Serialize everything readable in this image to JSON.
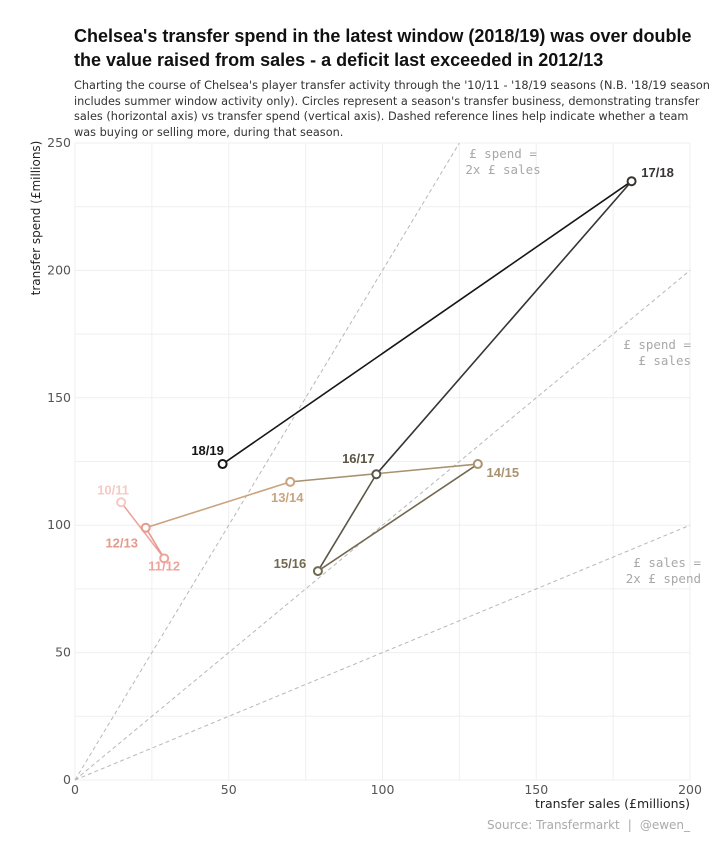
{
  "chart_data": {
    "type": "scatter",
    "title": "Chelsea's transfer spend in the latest window (2018/19) was over double the value raised from sales - a deficit last exceeded in 2012/13",
    "subtitle": "Charting the course of Chelsea's player transfer activity through the '10/11 - '18/19 seasons (N.B. '18/19 season includes summer window activity only). Circles represent a season's transfer business, demonstrating transfer sales (horizontal axis) vs transfer spend (vertical axis). Dashed reference lines help indicate whether a team was buying or selling more, during that season.",
    "xlabel": "transfer sales (£millions)",
    "ylabel": "transfer spend (£millions)",
    "xlim": [
      0,
      200
    ],
    "ylim": [
      0,
      250
    ],
    "xticks": [
      0,
      50,
      100,
      150,
      200
    ],
    "yticks": [
      0,
      50,
      100,
      150,
      200,
      250
    ],
    "points": [
      {
        "label": "10/11",
        "x": 15,
        "y": 109,
        "color": "#f6c9c6"
      },
      {
        "label": "11/12",
        "x": 29,
        "y": 87,
        "color": "#eea49c"
      },
      {
        "label": "12/13",
        "x": 23,
        "y": 99,
        "color": "#e49a8d"
      },
      {
        "label": "13/14",
        "x": 70,
        "y": 117,
        "color": "#c9a47e"
      },
      {
        "label": "14/15",
        "x": 131,
        "y": 124,
        "color": "#a8926f"
      },
      {
        "label": "15/16",
        "x": 79,
        "y": 82,
        "color": "#716a50"
      },
      {
        "label": "16/17",
        "x": 98,
        "y": 120,
        "color": "#5a5546"
      },
      {
        "label": "17/18",
        "x": 181,
        "y": 235,
        "color": "#373432"
      },
      {
        "label": "18/19",
        "x": 48,
        "y": 124,
        "color": "#161616"
      }
    ],
    "reference_lines": [
      {
        "slope": 2,
        "label_line1": "£ spend =",
        "label_line2": "2x £ sales"
      },
      {
        "slope": 1,
        "label_line1": "£ spend =",
        "label_line2": "£ sales"
      },
      {
        "slope": 0.5,
        "label_line1": "£ sales =",
        "label_line2": "2x £ spend"
      }
    ]
  },
  "caption": {
    "source": "Source:  Transfermarkt",
    "separator": "|",
    "author": "@ewen_"
  }
}
